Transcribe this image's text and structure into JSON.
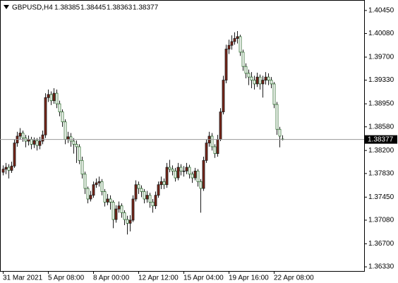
{
  "chart_data": {
    "type": "candlestick",
    "symbol": "GBPUSD,H4",
    "categories": [
      "31 Mar 2021",
      null,
      null,
      null,
      null,
      null,
      null,
      null,
      null,
      null,
      null,
      null,
      null,
      null,
      null,
      null,
      "5 Apr 08:00",
      null,
      null,
      null,
      null,
      null,
      null,
      null,
      null,
      null,
      null,
      null,
      null,
      null,
      null,
      null,
      "8 Apr 00:00",
      null,
      null,
      null,
      null,
      null,
      null,
      null,
      null,
      null,
      null,
      null,
      null,
      null,
      null,
      null,
      "12 Apr 12:00",
      null,
      null,
      null,
      null,
      null,
      null,
      null,
      null,
      null,
      null,
      null,
      null,
      null,
      null,
      null,
      "15 Apr 04:00",
      null,
      null,
      null,
      null,
      null,
      null,
      null,
      null,
      null,
      null,
      null,
      null,
      null,
      null,
      null,
      "19 Apr 16:00",
      null,
      null,
      null,
      null,
      null,
      null,
      null,
      null,
      null,
      null,
      null,
      null,
      null,
      null,
      null,
      "22 Apr 08:00",
      null,
      null,
      null
    ],
    "open": [
      1.3785,
      1.379,
      1.3793,
      1.3788,
      1.3795,
      1.3832,
      1.3843,
      1.3848,
      1.384,
      1.3835,
      1.3838,
      1.383,
      1.3836,
      1.3828,
      1.3835,
      1.3845,
      1.3905,
      1.391,
      1.39,
      1.3912,
      1.3895,
      1.3882,
      1.3866,
      1.3838,
      1.3842,
      1.3835,
      1.383,
      1.3826,
      1.3804,
      1.3782,
      1.3759,
      1.3742,
      1.3748,
      1.3765,
      1.3768,
      1.377,
      1.3754,
      1.3737,
      1.3742,
      1.3737,
      1.3709,
      1.3726,
      1.3731,
      1.372,
      1.3709,
      1.3703,
      1.3708,
      1.3742,
      1.3765,
      1.3759,
      1.3754,
      1.3742,
      1.3748,
      1.3737,
      1.3731,
      1.3748,
      1.3765,
      1.377,
      1.3765,
      1.3793,
      1.379,
      1.3787,
      1.3776,
      1.3793,
      1.3787,
      1.3787,
      1.3793,
      1.3782,
      1.3776,
      1.3787,
      1.377,
      1.3759,
      1.3804,
      1.3832,
      1.3843,
      1.3826,
      1.3815,
      1.3838,
      1.3882,
      1.3933,
      1.3983,
      1.3989,
      1.3995,
      1.4,
      1.4003,
      1.3978,
      1.3955,
      1.3944,
      1.3938,
      1.3933,
      1.3927,
      1.3938,
      1.3927,
      1.3933,
      1.3938,
      1.3933,
      1.3927,
      1.3894,
      1.3854,
      1.38385
    ],
    "high": [
      1.3796,
      1.38,
      1.3798,
      1.3802,
      1.3838,
      1.385,
      1.3856,
      1.3852,
      1.3845,
      1.3844,
      1.3842,
      1.3841,
      1.384,
      1.3842,
      1.3852,
      1.3912,
      1.3918,
      1.3915,
      1.392,
      1.3918,
      1.39,
      1.3886,
      1.387,
      1.385,
      1.3848,
      1.384,
      1.3836,
      1.383,
      1.381,
      1.3786,
      1.3762,
      1.3755,
      1.377,
      1.3775,
      1.3778,
      1.3774,
      1.3758,
      1.375,
      1.3748,
      1.374,
      1.3732,
      1.3738,
      1.3735,
      1.3724,
      1.3715,
      1.3716,
      1.3748,
      1.3772,
      1.377,
      1.3764,
      1.3758,
      1.3755,
      1.3752,
      1.3742,
      1.3754,
      1.377,
      1.3778,
      1.3775,
      1.38,
      1.3805,
      1.3796,
      1.3792,
      1.38,
      1.3798,
      1.3795,
      1.38,
      1.3797,
      1.3786,
      1.3792,
      1.379,
      1.3774,
      1.381,
      1.3838,
      1.385,
      1.3848,
      1.383,
      1.3845,
      1.3888,
      1.394,
      1.399,
      1.3998,
      1.4005,
      1.401,
      1.4012,
      1.4006,
      1.3982,
      1.396,
      1.395,
      1.3946,
      1.394,
      1.3945,
      1.3942,
      1.394,
      1.3946,
      1.3944,
      1.3938,
      1.393,
      1.3898,
      1.3858,
      1.38445
    ],
    "low": [
      1.378,
      1.3782,
      1.3775,
      1.3784,
      1.3792,
      1.3826,
      1.3838,
      1.3834,
      1.3825,
      1.3828,
      1.3822,
      1.3824,
      1.382,
      1.3822,
      1.383,
      1.384,
      1.3898,
      1.3893,
      1.3895,
      1.3888,
      1.3875,
      1.3858,
      1.383,
      1.3832,
      1.3826,
      1.3815,
      1.38,
      1.3798,
      1.3775,
      1.375,
      1.3735,
      1.3738,
      1.3744,
      1.376,
      1.3762,
      1.3748,
      1.373,
      1.3732,
      1.3725,
      1.3695,
      1.3704,
      1.372,
      1.3712,
      1.37,
      1.3685,
      1.369,
      1.3705,
      1.3738,
      1.375,
      1.3745,
      1.3735,
      1.3736,
      1.3728,
      1.372,
      1.3726,
      1.3744,
      1.3758,
      1.3758,
      1.376,
      1.3785,
      1.378,
      1.377,
      1.3772,
      1.378,
      1.3778,
      1.3782,
      1.3775,
      1.3768,
      1.3772,
      1.3762,
      1.372,
      1.3755,
      1.38,
      1.3826,
      1.382,
      1.3808,
      1.381,
      1.3835,
      1.3878,
      1.3928,
      1.3975,
      1.3982,
      1.399,
      1.3992,
      1.3972,
      1.3948,
      1.3936,
      1.3925,
      1.392,
      1.3918,
      1.3922,
      1.3918,
      1.3905,
      1.3926,
      1.3925,
      1.392,
      1.3888,
      1.3845,
      1.3825,
      1.38363
    ],
    "close": [
      1.379,
      1.3793,
      1.3788,
      1.3795,
      1.3832,
      1.3843,
      1.3848,
      1.384,
      1.3835,
      1.3838,
      1.383,
      1.3836,
      1.3828,
      1.3835,
      1.3845,
      1.3905,
      1.391,
      1.39,
      1.3912,
      1.3895,
      1.3882,
      1.3866,
      1.3838,
      1.3842,
      1.3835,
      1.383,
      1.3826,
      1.3804,
      1.3782,
      1.3759,
      1.3742,
      1.3748,
      1.3765,
      1.3768,
      1.377,
      1.3754,
      1.3737,
      1.3742,
      1.3737,
      1.3709,
      1.3726,
      1.3731,
      1.372,
      1.3709,
      1.3703,
      1.3708,
      1.3742,
      1.3765,
      1.3759,
      1.3754,
      1.3742,
      1.3748,
      1.3737,
      1.3731,
      1.3748,
      1.3765,
      1.377,
      1.3765,
      1.3793,
      1.379,
      1.3787,
      1.3776,
      1.3793,
      1.3787,
      1.3787,
      1.3793,
      1.3782,
      1.3776,
      1.3787,
      1.377,
      1.3759,
      1.3804,
      1.3832,
      1.3843,
      1.3826,
      1.3815,
      1.3838,
      1.3882,
      1.3933,
      1.3983,
      1.3989,
      1.3995,
      1.4,
      1.4003,
      1.3978,
      1.3955,
      1.3944,
      1.3938,
      1.3933,
      1.3927,
      1.3938,
      1.3927,
      1.3933,
      1.3938,
      1.3933,
      1.3927,
      1.3894,
      1.3854,
      1.3843,
      1.38377
    ],
    "ylim": [
      1.36263,
      1.40573
    ],
    "yticks": [
      {
        "value": 1.4045,
        "label": "1.40450"
      },
      {
        "value": 1.4008,
        "label": "1.40080"
      },
      {
        "value": 1.397,
        "label": "1.39700"
      },
      {
        "value": 1.3933,
        "label": "1.39330"
      },
      {
        "value": 1.3895,
        "label": "1.38950"
      },
      {
        "value": 1.3858,
        "label": "1.38580"
      },
      {
        "value": 1.382,
        "label": "1.38200"
      },
      {
        "value": 1.3783,
        "label": "1.37830"
      },
      {
        "value": 1.3745,
        "label": "1.37450"
      },
      {
        "value": 1.3708,
        "label": "1.37080"
      },
      {
        "value": 1.367,
        "label": "1.36700"
      },
      {
        "value": 1.3633,
        "label": "1.36330"
      }
    ],
    "up_color": "#7b2418",
    "down_color": "#ffffff",
    "up_outline": "#1b1b1b",
    "down_outline": "#2f6b2f",
    "wick_color": "#1b1b1b",
    "price_line_color": "#9a9a9a"
  }
}
